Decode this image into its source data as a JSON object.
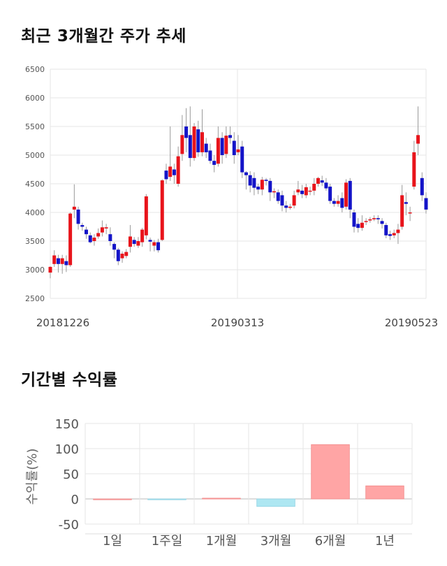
{
  "titles": {
    "price": "최근 3개월간 주가 추세",
    "returns": "기간별 수익률"
  },
  "chart_data": [
    {
      "type": "candlestick",
      "title": "최근 3개월간 주가 추세",
      "ylim": [
        2500,
        6500
      ],
      "yticks": [
        2500,
        3000,
        3500,
        4000,
        4500,
        5000,
        5500,
        6000,
        6500
      ],
      "x_labels": [
        "20181226",
        "20190313",
        "20190523"
      ],
      "grid": true,
      "colors": {
        "up": "#e8141b",
        "down": "#1414c8",
        "wick": "#999999"
      },
      "candles": [
        [
          2950,
          3050,
          2850,
          3060
        ],
        [
          3100,
          3250,
          3050,
          3340
        ],
        [
          3200,
          3100,
          2950,
          3260
        ],
        [
          3100,
          3200,
          2930,
          3260
        ],
        [
          3150,
          3080,
          2960,
          3250
        ],
        [
          3080,
          3980,
          3050,
          4000
        ],
        [
          4050,
          4100,
          3900,
          4490
        ],
        [
          4050,
          3800,
          3700,
          4100
        ],
        [
          3780,
          3750,
          3680,
          3820
        ],
        [
          3700,
          3620,
          3540,
          3750
        ],
        [
          3600,
          3480,
          3460,
          3650
        ],
        [
          3500,
          3560,
          3420,
          3620
        ],
        [
          3580,
          3640,
          3540,
          3720
        ],
        [
          3650,
          3740,
          3580,
          3860
        ],
        [
          3720,
          3740,
          3620,
          3800
        ],
        [
          3620,
          3500,
          3420,
          3740
        ],
        [
          3450,
          3350,
          3200,
          3480
        ],
        [
          3350,
          3150,
          3080,
          3380
        ],
        [
          3200,
          3280,
          3120,
          3320
        ],
        [
          3240,
          3310,
          3200,
          3360
        ],
        [
          3400,
          3580,
          3300,
          3780
        ],
        [
          3520,
          3450,
          3400,
          3570
        ],
        [
          3420,
          3500,
          3380,
          3570
        ],
        [
          3480,
          3700,
          3400,
          3730
        ],
        [
          3600,
          4280,
          3530,
          4320
        ],
        [
          3520,
          3490,
          3320,
          3560
        ],
        [
          3420,
          3480,
          3320,
          3520
        ],
        [
          3480,
          3340,
          3300,
          3540
        ],
        [
          3520,
          4560,
          3500,
          4580
        ],
        [
          4730,
          4580,
          4500,
          4850
        ],
        [
          4620,
          4800,
          4550,
          5500
        ],
        [
          4750,
          4650,
          4500,
          4850
        ],
        [
          4500,
          4980,
          4450,
          5150
        ],
        [
          5020,
          5350,
          4900,
          5700
        ],
        [
          5500,
          5300,
          5050,
          5820
        ],
        [
          5350,
          4950,
          4800,
          5850
        ],
        [
          4950,
          5500,
          4900,
          5560
        ],
        [
          5450,
          5050,
          4970,
          5600
        ],
        [
          5050,
          5400,
          4980,
          5800
        ],
        [
          5200,
          5050,
          4950,
          5300
        ],
        [
          5080,
          4900,
          4850,
          5200
        ],
        [
          4900,
          4830,
          4700,
          5000
        ],
        [
          4850,
          5300,
          4800,
          5500
        ],
        [
          5300,
          5000,
          4850,
          5400
        ],
        [
          5020,
          5340,
          4950,
          5500
        ],
        [
          5350,
          5300,
          5200,
          5500
        ],
        [
          5250,
          5000,
          4850,
          5400
        ],
        [
          5050,
          5100,
          5000,
          5350
        ],
        [
          5150,
          4700,
          4600,
          5250
        ],
        [
          4700,
          4650,
          4400,
          4720
        ],
        [
          4650,
          4470,
          4350,
          4720
        ],
        [
          4600,
          4430,
          4300,
          4700
        ],
        [
          4450,
          4400,
          4320,
          4500
        ],
        [
          4400,
          4570,
          4300,
          4620
        ],
        [
          4570,
          4550,
          4470,
          4600
        ],
        [
          4550,
          4350,
          4200,
          4600
        ],
        [
          4350,
          4370,
          4250,
          4420
        ],
        [
          4350,
          4200,
          4150,
          4400
        ],
        [
          4300,
          4120,
          4020,
          4380
        ],
        [
          4120,
          4080,
          4000,
          4200
        ],
        [
          4080,
          4100,
          4050,
          4150
        ],
        [
          4120,
          4300,
          4070,
          4380
        ],
        [
          4350,
          4400,
          4300,
          4550
        ],
        [
          4380,
          4320,
          4250,
          4480
        ],
        [
          4300,
          4440,
          4250,
          4500
        ],
        [
          4380,
          4380,
          4300,
          4450
        ],
        [
          4380,
          4500,
          4300,
          4600
        ],
        [
          4500,
          4600,
          4450,
          4620
        ],
        [
          4560,
          4520,
          4460,
          4640
        ],
        [
          4520,
          4420,
          4380,
          4600
        ],
        [
          4450,
          4200,
          4150,
          4500
        ],
        [
          4200,
          4150,
          4100,
          4250
        ],
        [
          4150,
          4200,
          4100,
          4300
        ],
        [
          4250,
          4080,
          4000,
          4350
        ],
        [
          4100,
          4520,
          4050,
          4580
        ],
        [
          4550,
          4050,
          3900,
          4600
        ],
        [
          4000,
          3750,
          3650,
          4050
        ],
        [
          3800,
          3730,
          3650,
          3900
        ],
        [
          3730,
          3820,
          3680,
          3950
        ],
        [
          3840,
          3850,
          3780,
          3900
        ],
        [
          3860,
          3880,
          3820,
          3920
        ],
        [
          3880,
          3900,
          3850,
          3950
        ],
        [
          3900,
          3880,
          3800,
          3950
        ],
        [
          3850,
          3800,
          3720,
          3900
        ],
        [
          3780,
          3600,
          3550,
          3820
        ],
        [
          3620,
          3590,
          3520,
          3680
        ],
        [
          3600,
          3640,
          3550,
          3700
        ],
        [
          3640,
          3700,
          3450,
          3800
        ],
        [
          3750,
          4300,
          3700,
          4480
        ],
        [
          4180,
          4150,
          3950,
          4350
        ],
        [
          4000,
          4000,
          3850,
          4100
        ],
        [
          4450,
          5050,
          4400,
          5250
        ],
        [
          5200,
          5350,
          5000,
          5850
        ],
        [
          4600,
          4300,
          4200,
          4700
        ],
        [
          4250,
          4050,
          3980,
          4350
        ]
      ]
    },
    {
      "type": "bar",
      "title": "기간별 수익률",
      "ylabel": "수익률(%)",
      "ylim": [
        -50,
        150
      ],
      "yticks": [
        -50,
        0,
        50,
        100,
        150
      ],
      "categories": [
        "1일",
        "1주일",
        "1개월",
        "3개월",
        "6개월",
        "1년"
      ],
      "values": [
        0,
        -1.5,
        1.5,
        -15,
        108,
        26
      ],
      "colors": {
        "positive": "#ffa5a5",
        "negative": "#aee7f2"
      },
      "grid": true
    }
  ]
}
